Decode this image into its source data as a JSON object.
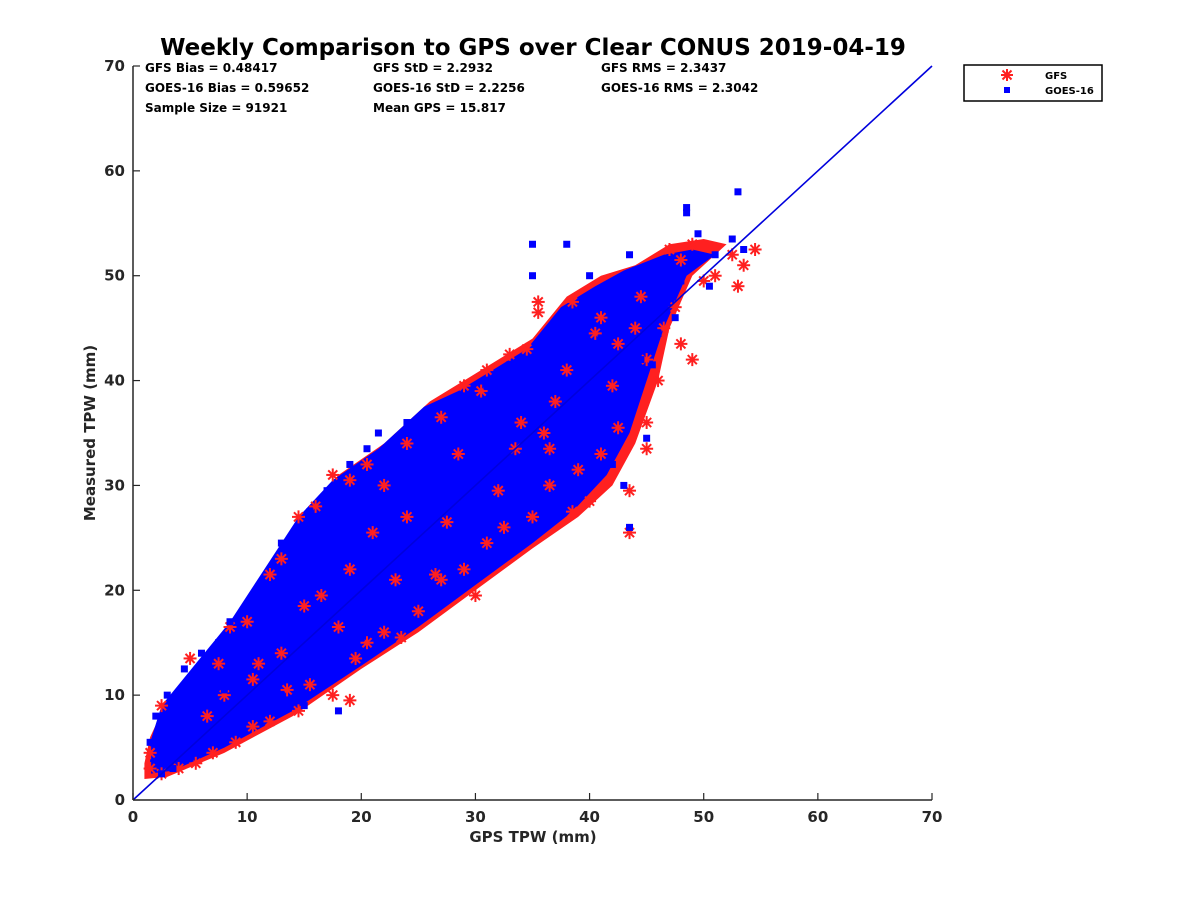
{
  "chart_data": {
    "type": "scatter",
    "title": "Weekly Comparison to GPS over Clear CONUS 2019-04-19",
    "xlabel": "GPS TPW (mm)",
    "ylabel": "Measured TPW (mm)",
    "xlim": [
      0,
      70
    ],
    "ylim": [
      0,
      70
    ],
    "xticks": [
      "0",
      "10",
      "20",
      "30",
      "40",
      "50",
      "60",
      "70"
    ],
    "yticks": [
      "0",
      "10",
      "20",
      "30",
      "40",
      "50",
      "60",
      "70"
    ],
    "grid": false,
    "legend_position": "outside-top-right",
    "stats": [
      [
        "GFS Bias = 0.48417",
        "GFS StD = 2.2932",
        "GFS RMS = 2.3437"
      ],
      [
        "GOES-16 Bias = 0.59652",
        "GOES-16 StD = 2.2256",
        "GOES-16 RMS = 2.3042"
      ],
      [
        "Sample Size = 91921",
        "Mean GPS = 15.817",
        ""
      ]
    ],
    "reference_line": {
      "x": [
        0,
        70
      ],
      "y": [
        0,
        70
      ],
      "color": "#0000dd"
    },
    "series": [
      {
        "name": "GFS",
        "marker": "asterisk",
        "color": "#ff2020",
        "points": [
          [
            1.5,
            4.5
          ],
          [
            2.5,
            9.0
          ],
          [
            5.0,
            13.5
          ],
          [
            7.5,
            13.0
          ],
          [
            8.5,
            16.5
          ],
          [
            10.0,
            17.0
          ],
          [
            12.0,
            21.5
          ],
          [
            13.0,
            23.0
          ],
          [
            14.5,
            27.0
          ],
          [
            16.0,
            28.0
          ],
          [
            17.5,
            31.0
          ],
          [
            19.0,
            30.5
          ],
          [
            20.5,
            32.0
          ],
          [
            22.0,
            30.0
          ],
          [
            24.0,
            34.0
          ],
          [
            27.0,
            36.5
          ],
          [
            29.0,
            39.5
          ],
          [
            30.5,
            39.0
          ],
          [
            31.0,
            41.0
          ],
          [
            33.0,
            42.5
          ],
          [
            34.5,
            43.0
          ],
          [
            35.5,
            47.5
          ],
          [
            35.5,
            46.5
          ],
          [
            38.5,
            47.5
          ],
          [
            41.0,
            46.0
          ],
          [
            44.5,
            48.0
          ],
          [
            47.0,
            52.5
          ],
          [
            48.0,
            51.5
          ],
          [
            49.0,
            53.0
          ],
          [
            51.0,
            50.0
          ],
          [
            52.5,
            52.0
          ],
          [
            53.5,
            51.0
          ],
          [
            54.5,
            52.5
          ],
          [
            53.0,
            49.0
          ],
          [
            49.0,
            42.0
          ],
          [
            48.0,
            43.5
          ],
          [
            46.0,
            40.0
          ],
          [
            45.0,
            36.0
          ],
          [
            45.0,
            33.5
          ],
          [
            43.5,
            25.5
          ],
          [
            43.5,
            29.5
          ],
          [
            42.5,
            35.5
          ],
          [
            41.0,
            33.0
          ],
          [
            40.0,
            28.5
          ],
          [
            38.5,
            27.5
          ],
          [
            36.5,
            30.0
          ],
          [
            35.0,
            27.0
          ],
          [
            32.5,
            26.0
          ],
          [
            31.0,
            24.5
          ],
          [
            29.0,
            22.0
          ],
          [
            27.0,
            21.0
          ],
          [
            25.0,
            18.0
          ],
          [
            23.5,
            15.5
          ],
          [
            22.0,
            16.0
          ],
          [
            20.5,
            15.0
          ],
          [
            19.5,
            13.5
          ],
          [
            19.0,
            9.5
          ],
          [
            17.5,
            10.0
          ],
          [
            15.5,
            11.0
          ],
          [
            14.5,
            8.5
          ],
          [
            13.5,
            10.5
          ],
          [
            12.0,
            7.5
          ],
          [
            10.5,
            7.0
          ],
          [
            9.0,
            5.5
          ],
          [
            7.0,
            4.5
          ],
          [
            5.5,
            3.5
          ],
          [
            4.0,
            3.0
          ],
          [
            2.5,
            2.5
          ],
          [
            1.5,
            3.0
          ],
          [
            40.5,
            44.5
          ],
          [
            42.5,
            43.5
          ],
          [
            45.0,
            42.0
          ],
          [
            46.5,
            45.0
          ],
          [
            37.0,
            38.0
          ],
          [
            33.5,
            33.5
          ],
          [
            28.5,
            33.0
          ],
          [
            24.0,
            27.0
          ],
          [
            19.0,
            22.0
          ],
          [
            15.0,
            18.5
          ],
          [
            11.0,
            13.0
          ],
          [
            6.5,
            8.0
          ],
          [
            30.0,
            19.5
          ],
          [
            26.5,
            21.5
          ],
          [
            21.0,
            25.5
          ],
          [
            16.5,
            19.5
          ],
          [
            10.5,
            11.5
          ],
          [
            8.0,
            10.0
          ],
          [
            34.0,
            36.0
          ],
          [
            38.0,
            41.0
          ],
          [
            42.0,
            39.5
          ],
          [
            44.0,
            45.0
          ],
          [
            47.5,
            47.0
          ],
          [
            50.0,
            49.5
          ],
          [
            36.5,
            33.5
          ],
          [
            32.0,
            29.5
          ],
          [
            27.5,
            26.5
          ],
          [
            23.0,
            21.0
          ],
          [
            18.0,
            16.5
          ],
          [
            13.0,
            14.0
          ],
          [
            39.0,
            31.5
          ],
          [
            36.0,
            35.0
          ]
        ]
      },
      {
        "name": "GOES-16",
        "marker": "square",
        "color": "#0000ff",
        "points": [
          [
            53.0,
            58.0
          ],
          [
            48.5,
            56.5
          ],
          [
            48.5,
            56.0
          ],
          [
            35.0,
            53.0
          ],
          [
            38.0,
            53.0
          ],
          [
            35.0,
            50.0
          ],
          [
            40.0,
            50.0
          ],
          [
            44.5,
            50.0
          ],
          [
            49.5,
            54.0
          ],
          [
            52.5,
            53.5
          ],
          [
            53.5,
            52.5
          ],
          [
            50.5,
            49.0
          ],
          [
            47.0,
            51.0
          ],
          [
            43.5,
            52.0
          ],
          [
            42.5,
            49.0
          ],
          [
            41.5,
            47.5
          ],
          [
            39.0,
            46.0
          ],
          [
            37.5,
            44.0
          ],
          [
            36.0,
            42.5
          ],
          [
            33.0,
            41.5
          ],
          [
            31.0,
            39.5
          ],
          [
            28.5,
            38.5
          ],
          [
            26.0,
            36.5
          ],
          [
            24.0,
            36.0
          ],
          [
            21.5,
            35.0
          ],
          [
            20.5,
            33.5
          ],
          [
            19.0,
            32.0
          ],
          [
            17.0,
            29.5
          ],
          [
            15.5,
            27.5
          ],
          [
            14.5,
            25.5
          ],
          [
            13.0,
            24.5
          ],
          [
            11.5,
            20.0
          ],
          [
            10.0,
            18.0
          ],
          [
            8.5,
            17.0
          ],
          [
            7.5,
            15.0
          ],
          [
            6.0,
            14.0
          ],
          [
            4.5,
            12.5
          ],
          [
            3.0,
            10.0
          ],
          [
            2.0,
            8.0
          ],
          [
            1.5,
            5.5
          ],
          [
            18.0,
            8.5
          ],
          [
            45.0,
            34.5
          ],
          [
            43.5,
            26.0
          ],
          [
            42.0,
            32.0
          ],
          [
            43.0,
            30.0
          ],
          [
            47.5,
            46.0
          ],
          [
            44.5,
            42.0
          ],
          [
            46.0,
            44.5
          ],
          [
            45.5,
            41.5
          ],
          [
            40.5,
            39.0
          ],
          [
            38.0,
            35.0
          ],
          [
            35.5,
            30.0
          ],
          [
            33.0,
            27.5
          ],
          [
            31.0,
            26.0
          ],
          [
            29.0,
            23.5
          ],
          [
            26.5,
            22.5
          ],
          [
            24.0,
            19.5
          ],
          [
            22.0,
            17.5
          ],
          [
            20.0,
            15.5
          ],
          [
            18.5,
            14.0
          ],
          [
            16.5,
            11.5
          ],
          [
            15.0,
            9.0
          ],
          [
            13.0,
            10.0
          ],
          [
            11.0,
            8.5
          ],
          [
            9.0,
            7.0
          ],
          [
            7.0,
            5.5
          ],
          [
            5.0,
            4.0
          ],
          [
            3.5,
            3.0
          ],
          [
            2.5,
            2.5
          ],
          [
            27.0,
            31.0
          ],
          [
            22.5,
            27.0
          ],
          [
            31.0,
            35.0
          ],
          [
            35.0,
            38.0
          ],
          [
            39.5,
            42.0
          ],
          [
            43.0,
            45.0
          ],
          [
            48.0,
            49.5
          ],
          [
            51.0,
            52.0
          ],
          [
            17.0,
            21.5
          ],
          [
            12.5,
            15.0
          ],
          [
            8.0,
            10.5
          ],
          [
            36.5,
            40.5
          ],
          [
            41.0,
            44.0
          ],
          [
            46.5,
            48.0
          ]
        ]
      }
    ]
  }
}
